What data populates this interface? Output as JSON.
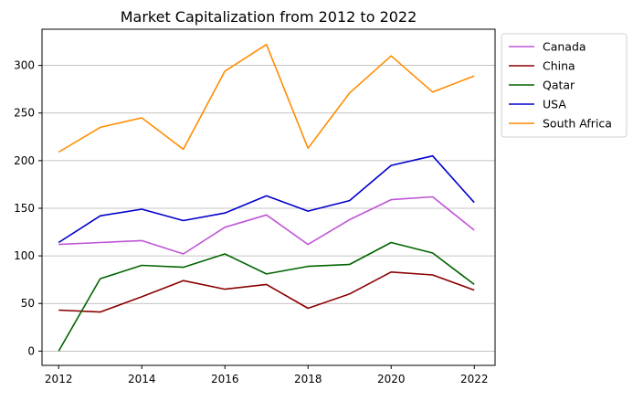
{
  "chart_data": {
    "type": "line",
    "title": "Market Capitalization from 2012 to 2022",
    "xlabel": "",
    "ylabel": "",
    "x": [
      2012,
      2013,
      2014,
      2015,
      2016,
      2017,
      2018,
      2019,
      2020,
      2021,
      2022
    ],
    "xlim": [
      2011.6,
      2022.5
    ],
    "ylim": [
      -15,
      338
    ],
    "xticks": [
      "2012",
      "2014",
      "2016",
      "2018",
      "2020",
      "2022"
    ],
    "yticks": [
      "0",
      "50",
      "100",
      "150",
      "200",
      "250",
      "300"
    ],
    "grid": "horizontal",
    "legend_position": "outside-top-right",
    "series": [
      {
        "name": "Canada",
        "color": "#bf55d6",
        "values": [
          112,
          114,
          116,
          102,
          130,
          143,
          112,
          138,
          159,
          162,
          127
        ]
      },
      {
        "name": "China",
        "color": "#8b0000",
        "values": [
          43,
          41,
          57,
          74,
          65,
          70,
          45,
          60,
          83,
          80,
          64
        ]
      },
      {
        "name": "Qatar",
        "color": "#006400",
        "values": [
          0,
          76,
          90,
          88,
          102,
          81,
          89,
          91,
          114,
          103,
          70
        ]
      },
      {
        "name": "USA",
        "color": "#0000cd",
        "values": [
          114,
          142,
          149,
          137,
          145,
          163,
          147,
          158,
          195,
          205,
          156
        ]
      },
      {
        "name": "South Africa",
        "color": "#ff8c00",
        "values": [
          209,
          235,
          245,
          212,
          294,
          322,
          213,
          271,
          310,
          272,
          289
        ]
      }
    ]
  }
}
